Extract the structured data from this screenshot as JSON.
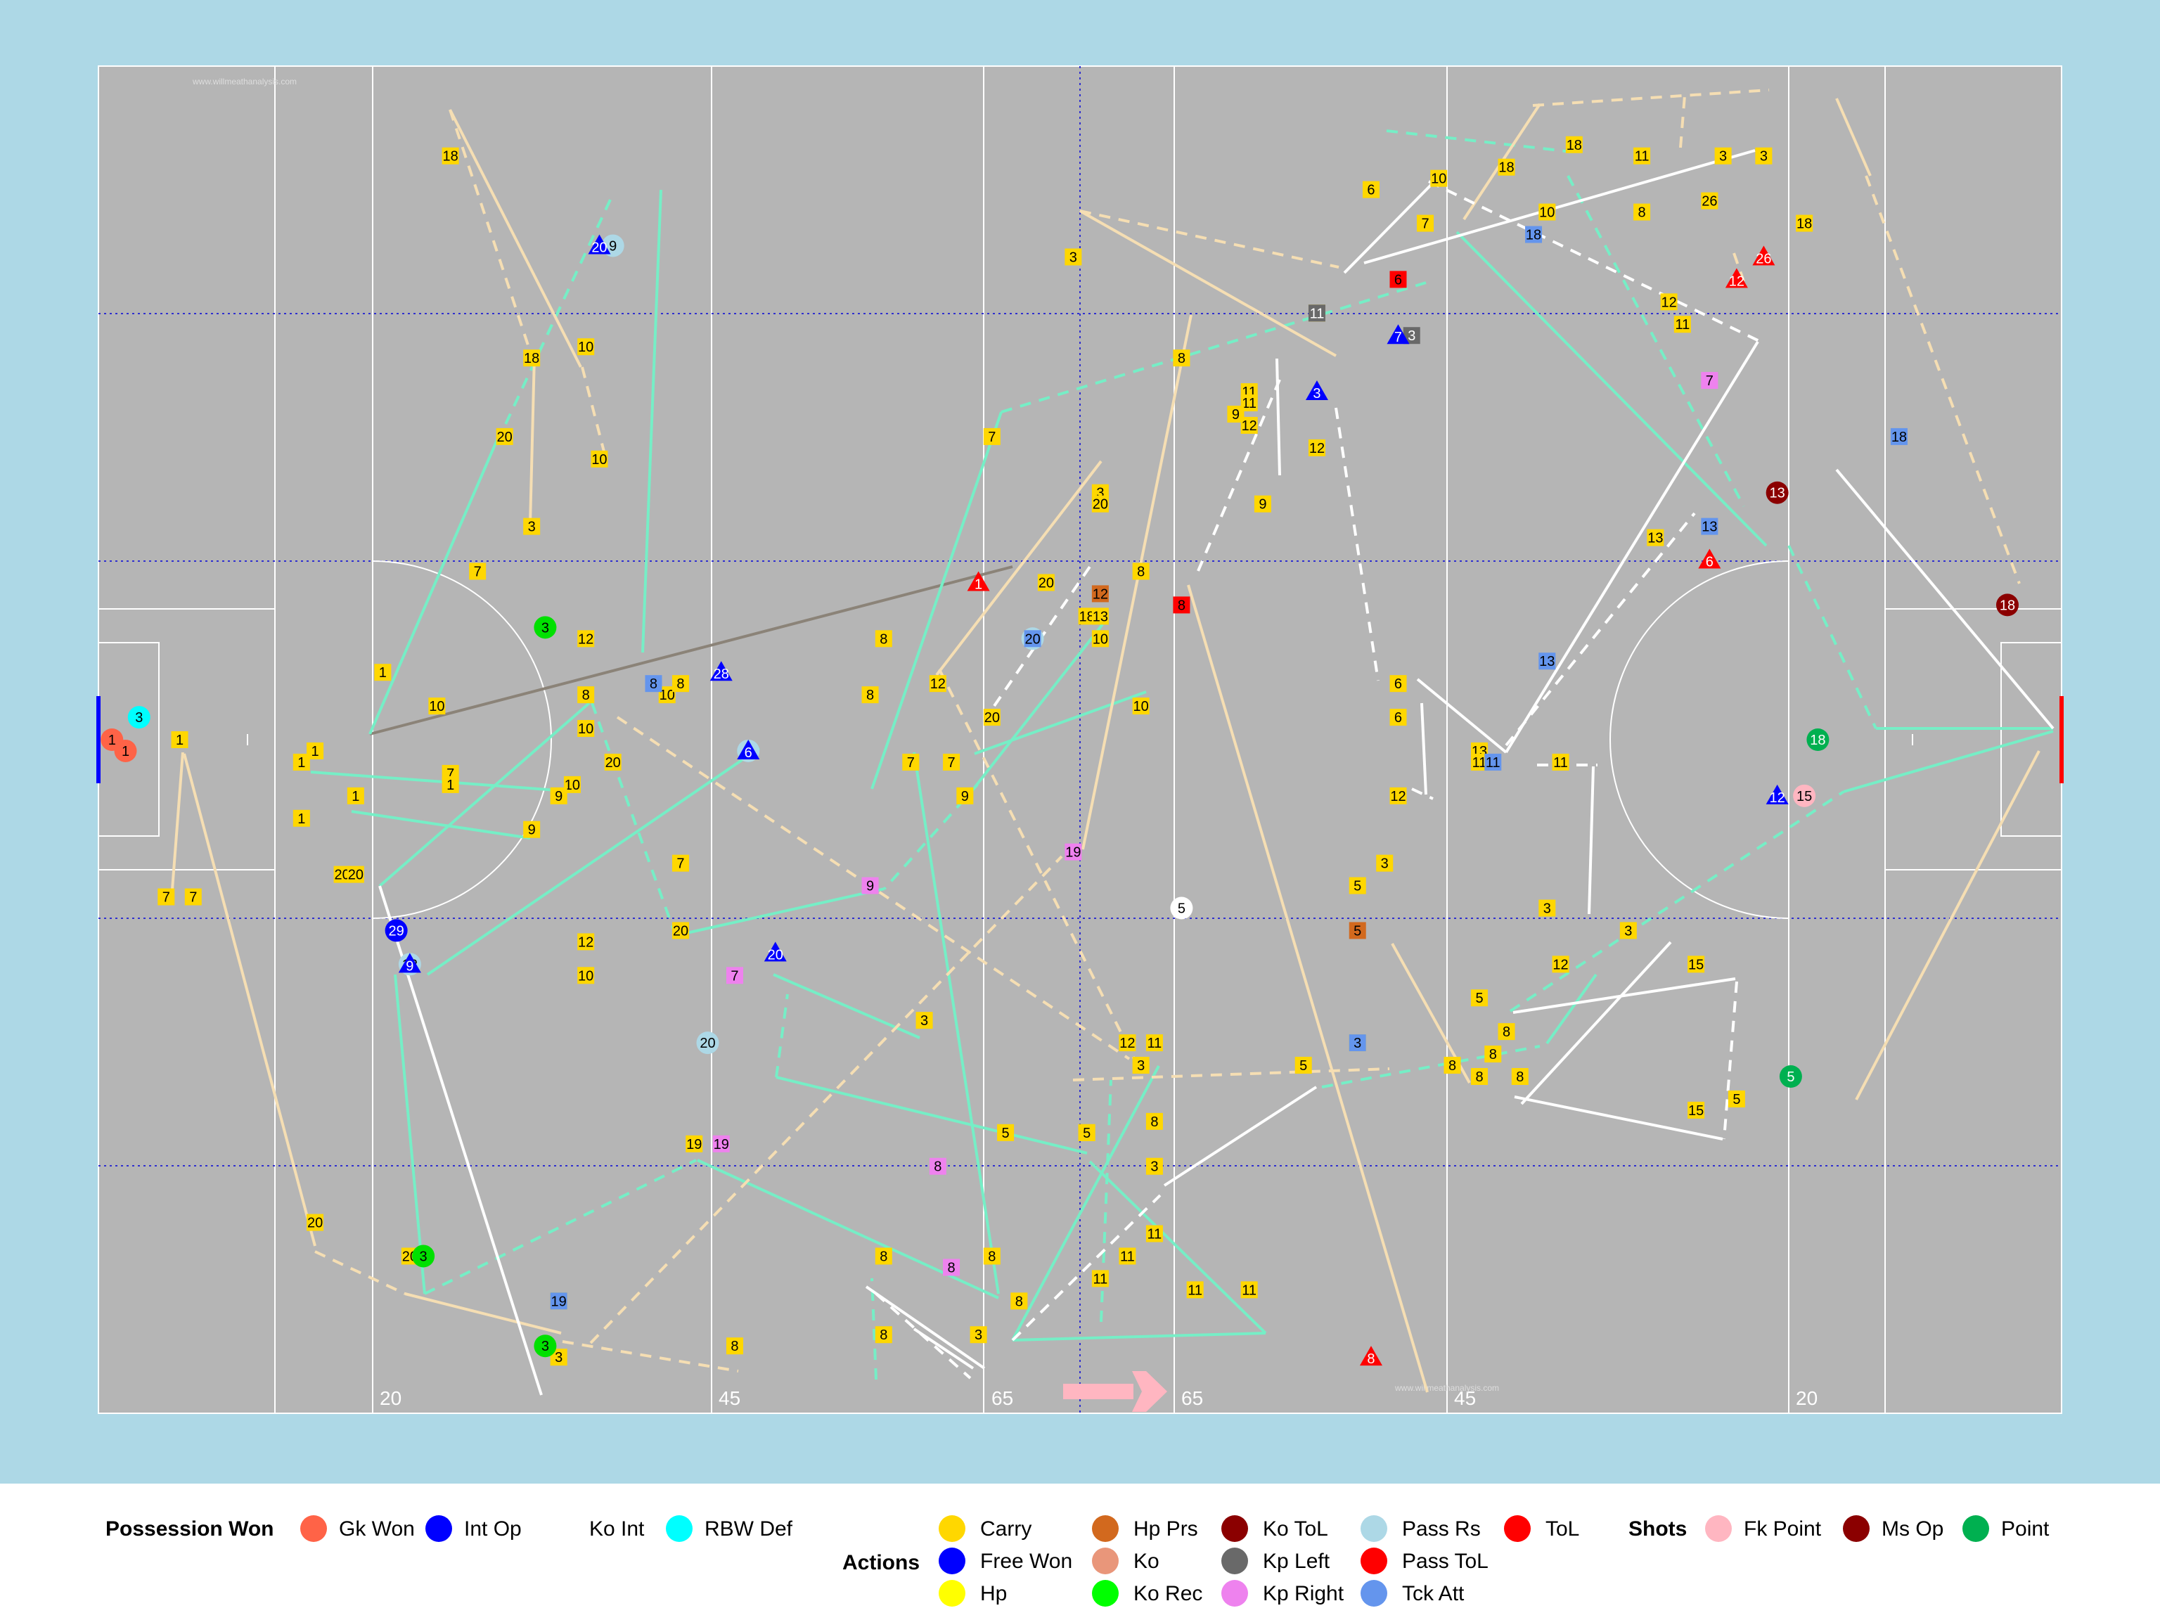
{
  "colors": {
    "background": "#add8e6",
    "pitch": "#b5b5b5",
    "line_white": "#ffffff",
    "line_dotted": "#2f2fcf",
    "carry": "#ffd700",
    "pass": "#76eec6",
    "carry_line": "#f5deb3",
    "kickout": "#e8c9a8",
    "white_pass": "#ffffff",
    "grey_line": "#8b8378",
    "pink_arrow": "#ffb6c1"
  },
  "pitch_markings": {
    "distance_labels": [
      "20",
      "45",
      "65",
      "65",
      "45",
      "20"
    ],
    "watermark": "www.willmeathanalysis.com"
  },
  "chart_data": {
    "type": "scatter",
    "title": "",
    "xlim": [
      0,
      145
    ],
    "ylim": [
      0,
      88
    ],
    "actions": [
      {
        "kind": "Carry",
        "label": "18",
        "x": 26,
        "y": 8
      },
      {
        "kind": "Carry",
        "label": "10",
        "x": 36,
        "y": 25
      },
      {
        "kind": "Carry",
        "label": "18",
        "x": 32,
        "y": 26
      },
      {
        "kind": "Carry",
        "label": "20",
        "x": 30,
        "y": 33
      },
      {
        "kind": "Carry",
        "label": "10",
        "x": 37,
        "y": 35
      },
      {
        "kind": "Carry",
        "label": "3",
        "x": 32,
        "y": 41
      },
      {
        "kind": "Carry",
        "label": "7",
        "x": 28,
        "y": 45
      },
      {
        "kind": "Carry",
        "label": "12",
        "x": 36,
        "y": 51
      },
      {
        "kind": "Carry",
        "label": "1",
        "x": 21,
        "y": 54
      },
      {
        "kind": "Carry",
        "label": "10",
        "x": 25,
        "y": 57
      },
      {
        "kind": "Carry",
        "label": "8",
        "x": 36,
        "y": 56
      },
      {
        "kind": "Carry",
        "label": "10",
        "x": 36,
        "y": 59
      },
      {
        "kind": "Carry",
        "label": "10",
        "x": 42,
        "y": 56
      },
      {
        "kind": "Carry",
        "label": "8",
        "x": 43,
        "y": 55
      },
      {
        "kind": "Carry",
        "label": "1",
        "x": 6,
        "y": 60
      },
      {
        "kind": "Carry",
        "label": "1",
        "x": 15,
        "y": 62
      },
      {
        "kind": "Carry",
        "label": "1",
        "x": 16,
        "y": 61
      },
      {
        "kind": "Carry",
        "label": "20",
        "x": 38,
        "y": 62
      },
      {
        "kind": "Carry",
        "label": "7",
        "x": 26,
        "y": 63
      },
      {
        "kind": "Carry",
        "label": "1",
        "x": 26,
        "y": 64
      },
      {
        "kind": "Carry",
        "label": "10",
        "x": 35,
        "y": 64
      },
      {
        "kind": "Carry",
        "label": "9",
        "x": 34,
        "y": 65
      },
      {
        "kind": "Carry",
        "label": "1",
        "x": 19,
        "y": 65
      },
      {
        "kind": "Carry",
        "label": "1",
        "x": 15,
        "y": 67
      },
      {
        "kind": "Carry",
        "label": "9",
        "x": 32,
        "y": 68
      },
      {
        "kind": "Carry",
        "label": "7",
        "x": 43,
        "y": 71
      },
      {
        "kind": "Carry",
        "label": "20",
        "x": 18,
        "y": 72
      },
      {
        "kind": "Carry",
        "label": "20",
        "x": 19,
        "y": 72
      },
      {
        "kind": "Carry",
        "label": "7",
        "x": 5,
        "y": 74
      },
      {
        "kind": "Carry",
        "label": "7",
        "x": 7,
        "y": 74
      },
      {
        "kind": "Carry",
        "label": "12",
        "x": 36,
        "y": 78
      },
      {
        "kind": "Carry",
        "label": "20",
        "x": 43,
        "y": 77
      },
      {
        "kind": "Carry",
        "label": "10",
        "x": 36,
        "y": 81
      },
      {
        "kind": "Carry",
        "label": "20",
        "x": 16,
        "y": 103
      },
      {
        "kind": "Carry",
        "label": "20",
        "x": 23,
        "y": 106
      },
      {
        "kind": "Carry",
        "label": "19",
        "x": 34,
        "y": 110
      },
      {
        "kind": "Carry",
        "label": "8",
        "x": 47,
        "y": 114
      },
      {
        "kind": "Carry",
        "label": "3",
        "x": 34,
        "y": 115
      },
      {
        "kind": "Carry",
        "label": "19",
        "x": 44,
        "y": 96
      },
      {
        "kind": "Carry",
        "label": "3",
        "x": 61,
        "y": 85
      },
      {
        "kind": "Carry",
        "label": "8",
        "x": 58,
        "y": 51
      },
      {
        "kind": "Carry",
        "label": "8",
        "x": 57,
        "y": 56
      },
      {
        "kind": "Carry",
        "label": "12",
        "x": 62,
        "y": 55
      },
      {
        "kind": "Carry",
        "label": "7",
        "x": 60,
        "y": 62
      },
      {
        "kind": "Carry",
        "label": "7",
        "x": 63,
        "y": 62
      },
      {
        "kind": "Carry",
        "label": "9",
        "x": 64,
        "y": 65
      },
      {
        "kind": "Carry",
        "label": "7",
        "x": 66,
        "y": 33
      },
      {
        "kind": "Carry",
        "label": "3",
        "x": 72,
        "y": 17
      },
      {
        "kind": "Carry",
        "label": "3",
        "x": 74,
        "y": 38
      },
      {
        "kind": "Carry",
        "label": "20",
        "x": 74,
        "y": 39
      },
      {
        "kind": "Carry",
        "label": "20",
        "x": 70,
        "y": 46
      },
      {
        "kind": "Carry",
        "label": "8",
        "x": 77,
        "y": 45
      },
      {
        "kind": "Carry",
        "label": "18",
        "x": 73,
        "y": 49
      },
      {
        "kind": "Carry",
        "label": "13",
        "x": 74,
        "y": 49
      },
      {
        "kind": "Carry",
        "label": "10",
        "x": 74,
        "y": 51
      },
      {
        "kind": "Carry",
        "label": "10",
        "x": 77,
        "y": 57
      },
      {
        "kind": "Carry",
        "label": "20",
        "x": 66,
        "y": 58
      },
      {
        "kind": "Carry",
        "label": "8",
        "x": 80,
        "y": 26
      },
      {
        "kind": "Carry",
        "label": "5",
        "x": 67,
        "y": 95
      },
      {
        "kind": "Carry",
        "label": "8",
        "x": 73,
        "y": 95
      },
      {
        "kind": "Carry",
        "label": "5",
        "x": 73,
        "y": 95
      },
      {
        "kind": "Carry",
        "label": "8",
        "x": 78,
        "y": 94
      },
      {
        "kind": "Carry",
        "label": "3",
        "x": 78,
        "y": 98
      },
      {
        "kind": "Carry",
        "label": "12",
        "x": 76,
        "y": 87
      },
      {
        "kind": "Carry",
        "label": "11",
        "x": 78,
        "y": 87
      },
      {
        "kind": "Carry",
        "label": "3",
        "x": 77,
        "y": 89
      },
      {
        "kind": "Carry",
        "label": "11",
        "x": 78,
        "y": 104
      },
      {
        "kind": "Carry",
        "label": "11",
        "x": 76,
        "y": 106
      },
      {
        "kind": "Carry",
        "label": "11",
        "x": 74,
        "y": 108
      },
      {
        "kind": "Carry",
        "label": "11",
        "x": 81,
        "y": 109
      },
      {
        "kind": "Carry",
        "label": "11",
        "x": 85,
        "y": 109
      },
      {
        "kind": "Carry",
        "label": "8",
        "x": 58,
        "y": 106
      },
      {
        "kind": "Carry",
        "label": "8",
        "x": 66,
        "y": 106
      },
      {
        "kind": "Carry",
        "label": "8",
        "x": 68,
        "y": 110
      },
      {
        "kind": "Carry",
        "label": "3",
        "x": 65,
        "y": 113
      },
      {
        "kind": "Carry",
        "label": "8",
        "x": 58,
        "y": 113
      },
      {
        "kind": "Carry",
        "label": "11",
        "x": 85,
        "y": 29
      },
      {
        "kind": "Carry",
        "label": "11",
        "x": 85,
        "y": 30
      },
      {
        "kind": "Carry",
        "label": "9",
        "x": 84,
        "y": 31
      },
      {
        "kind": "Carry",
        "label": "12",
        "x": 85,
        "y": 32
      },
      {
        "kind": "Carry",
        "label": "9",
        "x": 86,
        "y": 39
      },
      {
        "kind": "Carry",
        "label": "12",
        "x": 90,
        "y": 34
      },
      {
        "kind": "Carry",
        "label": "11",
        "x": 90,
        "y": 22
      },
      {
        "kind": "Carry",
        "label": "6",
        "x": 94,
        "y": 11
      },
      {
        "kind": "Carry",
        "label": "10",
        "x": 99,
        "y": 10
      },
      {
        "kind": "Carry",
        "label": "7",
        "x": 98,
        "y": 14
      },
      {
        "kind": "Carry",
        "label": "18",
        "x": 104,
        "y": 9
      },
      {
        "kind": "Carry",
        "label": "18",
        "x": 109,
        "y": 7
      },
      {
        "kind": "Carry",
        "label": "11",
        "x": 114,
        "y": 8
      },
      {
        "kind": "Carry",
        "label": "3",
        "x": 120,
        "y": 8
      },
      {
        "kind": "Carry",
        "label": "3",
        "x": 123,
        "y": 8
      },
      {
        "kind": "Carry",
        "label": "10",
        "x": 107,
        "y": 13
      },
      {
        "kind": "Carry",
        "label": "8",
        "x": 114,
        "y": 13
      },
      {
        "kind": "Carry",
        "label": "26",
        "x": 119,
        "y": 12
      },
      {
        "kind": "Carry",
        "label": "18",
        "x": 126,
        "y": 14
      },
      {
        "kind": "Carry",
        "label": "12",
        "x": 116,
        "y": 21
      },
      {
        "kind": "Carry",
        "label": "11",
        "x": 117,
        "y": 23
      },
      {
        "kind": "Carry",
        "label": "6",
        "x": 96,
        "y": 55
      },
      {
        "kind": "Carry",
        "label": "6",
        "x": 96,
        "y": 58
      },
      {
        "kind": "Carry",
        "label": "12",
        "x": 96,
        "y": 65
      },
      {
        "kind": "Carry",
        "label": "13",
        "x": 102,
        "y": 61
      },
      {
        "kind": "Carry",
        "label": "11",
        "x": 102,
        "y": 62
      },
      {
        "kind": "Carry",
        "label": "11",
        "x": 108,
        "y": 62
      },
      {
        "kind": "Carry",
        "label": "13",
        "x": 115,
        "y": 42
      },
      {
        "kind": "Carry",
        "label": "3",
        "x": 95,
        "y": 71
      },
      {
        "kind": "Carry",
        "label": "5",
        "x": 93,
        "y": 73
      },
      {
        "kind": "Carry",
        "label": "3",
        "x": 107,
        "y": 75
      },
      {
        "kind": "Carry",
        "label": "3",
        "x": 113,
        "y": 77
      },
      {
        "kind": "Carry",
        "label": "12",
        "x": 108,
        "y": 80
      },
      {
        "kind": "Carry",
        "label": "15",
        "x": 118,
        "y": 80
      },
      {
        "kind": "Carry",
        "label": "5",
        "x": 102,
        "y": 83
      },
      {
        "kind": "Carry",
        "label": "8",
        "x": 104,
        "y": 86
      },
      {
        "kind": "Carry",
        "label": "8",
        "x": 103,
        "y": 88
      },
      {
        "kind": "Carry",
        "label": "8",
        "x": 102,
        "y": 90
      },
      {
        "kind": "Carry",
        "label": "8",
        "x": 105,
        "y": 90
      },
      {
        "kind": "Carry",
        "label": "8",
        "x": 100,
        "y": 89
      },
      {
        "kind": "Carry",
        "label": "3",
        "x": 93,
        "y": 87
      },
      {
        "kind": "Carry",
        "label": "5",
        "x": 89,
        "y": 89
      },
      {
        "kind": "Carry",
        "label": "15",
        "x": 118,
        "y": 93
      },
      {
        "kind": "Carry",
        "label": "5",
        "x": 121,
        "y": 92
      }
    ],
    "kickouts": [
      {
        "kind": "Kp Right",
        "label": "19",
        "x": 72,
        "y": 70
      },
      {
        "kind": "Kp Right",
        "label": "9",
        "x": 57,
        "y": 73
      },
      {
        "kind": "Kp Right",
        "label": "7",
        "x": 47,
        "y": 81
      },
      {
        "kind": "Kp Right",
        "label": "19",
        "x": 46,
        "y": 96
      },
      {
        "kind": "Kp Right",
        "label": "8",
        "x": 62,
        "y": 98
      },
      {
        "kind": "Kp Right",
        "label": "8",
        "x": 63,
        "y": 107
      },
      {
        "kind": "Kp Right",
        "label": "7",
        "x": 119,
        "y": 28
      },
      {
        "kind": "Kp Left",
        "label": "11",
        "x": 90,
        "y": 22
      },
      {
        "kind": "Kp Left",
        "label": "3",
        "x": 97,
        "y": 24
      },
      {
        "kind": "Hp Prs",
        "label": "5",
        "x": 93,
        "y": 77
      },
      {
        "kind": "Hp Prs",
        "label": "12",
        "x": 74,
        "y": 47
      }
    ],
    "passes_received": [
      {
        "kind": "Pass Rs",
        "label": "12",
        "x": 23,
        "y": 80
      },
      {
        "kind": "Pass Rs",
        "label": "20",
        "x": 45,
        "y": 87
      },
      {
        "kind": "Pass Rs",
        "label": "6",
        "x": 48,
        "y": 61
      },
      {
        "kind": "Pass Rs",
        "label": "9",
        "x": 38,
        "y": 16
      },
      {
        "kind": "Pass Rs",
        "label": "20",
        "x": 69,
        "y": 51
      }
    ],
    "tackle_attempts": [
      {
        "kind": "Tck Att",
        "label": "8",
        "x": 41,
        "y": 55
      },
      {
        "kind": "Tck Att",
        "label": "19",
        "x": 34,
        "y": 110
      },
      {
        "kind": "Tck Att",
        "label": "18",
        "x": 106,
        "y": 15
      },
      {
        "kind": "Tck Att",
        "label": "18",
        "x": 133,
        "y": 33
      },
      {
        "kind": "Tck Att",
        "label": "13",
        "x": 119,
        "y": 41
      },
      {
        "kind": "Tck Att",
        "label": "13",
        "x": 107,
        "y": 53
      },
      {
        "kind": "Tck Att",
        "label": "11",
        "x": 103,
        "y": 62
      },
      {
        "kind": "Tck Att",
        "label": "3",
        "x": 93,
        "y": 87
      },
      {
        "kind": "Tck Att",
        "label": "20",
        "x": 69,
        "y": 51
      }
    ],
    "free_won": [
      {
        "kind": "Free Won",
        "label": "20",
        "x": 37,
        "y": 16
      },
      {
        "kind": "Free Won",
        "label": "28",
        "x": 46,
        "y": 54
      },
      {
        "kind": "Free Won",
        "label": "6",
        "x": 48,
        "y": 61
      },
      {
        "kind": "Free Won",
        "label": "9",
        "x": 23,
        "y": 80
      },
      {
        "kind": "Free Won",
        "label": "20",
        "x": 50,
        "y": 79
      },
      {
        "kind": "Free Won",
        "label": "7",
        "x": 96,
        "y": 24
      },
      {
        "kind": "Free Won",
        "label": "3",
        "x": 90,
        "y": 29
      },
      {
        "kind": "Free Won",
        "label": "12",
        "x": 124,
        "y": 65
      }
    ],
    "turnovers": [
      {
        "kind": "ToL",
        "label": "1",
        "x": 65,
        "y": 46
      },
      {
        "kind": "ToL",
        "label": "26",
        "x": 123,
        "y": 17
      },
      {
        "kind": "ToL",
        "label": "12",
        "x": 121,
        "y": 19
      },
      {
        "kind": "ToL",
        "label": "6",
        "x": 119,
        "y": 44
      },
      {
        "kind": "ToL",
        "label": "8",
        "x": 94,
        "y": 115
      },
      {
        "kind": "Pass ToL",
        "label": "6",
        "x": 96,
        "y": 19
      },
      {
        "kind": "Pass ToL",
        "label": "8",
        "x": 80,
        "y": 48
      }
    ],
    "possession_won": [
      {
        "kind": "Gk Won",
        "label": "1",
        "x": 1,
        "y": 60
      },
      {
        "kind": "Gk Won",
        "label": "1",
        "x": 2,
        "y": 61
      },
      {
        "kind": "RBW Def",
        "label": "3",
        "x": 3,
        "y": 58
      },
      {
        "kind": "Int Op",
        "label": "29",
        "x": 22,
        "y": 77
      },
      {
        "kind": "Ko Int",
        "label": "5",
        "x": 80,
        "y": 75
      },
      {
        "kind": "Ko Rec",
        "label": "3",
        "x": 33,
        "y": 50
      },
      {
        "kind": "Ko Rec",
        "label": "3",
        "x": 24,
        "y": 106
      },
      {
        "kind": "Ko Rec",
        "label": "3",
        "x": 33,
        "y": 114
      }
    ],
    "shots": [
      {
        "kind": "Point",
        "label": "18",
        "x": 127,
        "y": 60
      },
      {
        "kind": "Point",
        "label": "5",
        "x": 125,
        "y": 90
      },
      {
        "kind": "Ms Op",
        "label": "13",
        "x": 124,
        "y": 38
      },
      {
        "kind": "Ms Op",
        "label": "18",
        "x": 141,
        "y": 48
      },
      {
        "kind": "Fk Point",
        "label": "15",
        "x": 126,
        "y": 65
      }
    ],
    "legend": {
      "possession_title": "Possession Won",
      "possession_items": [
        {
          "label": "Gk Won",
          "color": "#ff6347"
        },
        {
          "label": "Int Op",
          "color": "#0000ff"
        },
        {
          "label": "Ko Int",
          "color": "#ffffff"
        },
        {
          "label": "RBW Def",
          "color": "#00ffff"
        }
      ],
      "actions_title": "Actions",
      "actions_items": [
        {
          "label": "Carry",
          "color": "#ffd700"
        },
        {
          "label": "Free Won",
          "color": "#0000ff"
        },
        {
          "label": "Hp",
          "color": "#ffff00"
        },
        {
          "label": "Hp Prs",
          "color": "#d2691e"
        },
        {
          "label": "Ko",
          "color": "#e9967a"
        },
        {
          "label": "Ko Rec",
          "color": "#00ff00"
        },
        {
          "label": "Ko ToL",
          "color": "#8b0000"
        },
        {
          "label": "Kp Left",
          "color": "#696969"
        },
        {
          "label": "Kp Right",
          "color": "#ee82ee"
        },
        {
          "label": "Pass Rs",
          "color": "#add8e6"
        },
        {
          "label": "Pass ToL",
          "color": "#ff0000"
        },
        {
          "label": "Tck Att",
          "color": "#6495ed"
        },
        {
          "label": "ToL",
          "color": "#ff0000"
        }
      ],
      "shots_title": "Shots",
      "shots_items": [
        {
          "label": "Fk Point",
          "color": "#ffb6c1"
        },
        {
          "label": "Ms Op",
          "color": "#8b0000"
        },
        {
          "label": "Point",
          "color": "#00b050"
        }
      ]
    }
  }
}
